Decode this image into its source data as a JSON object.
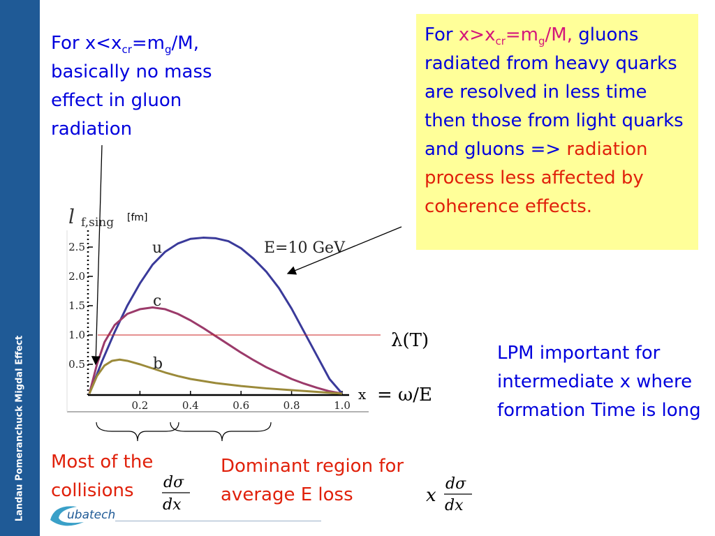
{
  "sidebar": {
    "title": "Landau Pomeranchuck Migdal Effect",
    "color": "#1f5a96"
  },
  "notes": {
    "left": {
      "prefix": "For x<x",
      "sub1": "cr",
      "mid": "=m",
      "sub2": "g",
      "suffix": "/M,",
      "body": "basically no mass effect in gluon radiation"
    },
    "box": {
      "prefix": "For ",
      "cond_a": "x>x",
      "cond_sub1": "cr",
      "cond_b": "=m",
      "cond_sub2": "g",
      "cond_c": "/M,",
      "body": " gluons radiated from  heavy quarks are resolved in less time then those from light quarks and gluons => ",
      "highlight": "radiation process less affected by coherence effects."
    },
    "lpm": "LPM important for intermediate x where formation Time is long",
    "collisions": "Most of the collisions",
    "dominant": "Dominant region for average E loss"
  },
  "logo": {
    "text": "ubatech"
  },
  "chart_data": {
    "type": "line",
    "xlabel": "x",
    "xlabel_suffix": "= ω/E",
    "ylabel": "l",
    "ylabel_sub": "f,sing",
    "yunit": "[fm]",
    "annotation": "E=10 GeV",
    "xlim": [
      0,
      1.0
    ],
    "ylim": [
      0,
      2.8
    ],
    "xticks": [
      "0.2",
      "0.4",
      "0.6",
      "0.8",
      "1.0"
    ],
    "yticks": [
      "0.5",
      "1.0",
      "1.5",
      "2.0",
      "2.5"
    ],
    "hline": {
      "y": 1.0,
      "label": "λ(T)",
      "color": "#cc2222"
    },
    "series": [
      {
        "name": "u",
        "color": "#3a3a9a",
        "points": [
          [
            0,
            0
          ],
          [
            0.05,
            0.55
          ],
          [
            0.1,
            1.05
          ],
          [
            0.15,
            1.5
          ],
          [
            0.2,
            1.88
          ],
          [
            0.25,
            2.2
          ],
          [
            0.3,
            2.42
          ],
          [
            0.35,
            2.56
          ],
          [
            0.4,
            2.64
          ],
          [
            0.45,
            2.66
          ],
          [
            0.5,
            2.65
          ],
          [
            0.55,
            2.6
          ],
          [
            0.6,
            2.48
          ],
          [
            0.65,
            2.3
          ],
          [
            0.7,
            2.08
          ],
          [
            0.75,
            1.8
          ],
          [
            0.8,
            1.45
          ],
          [
            0.85,
            1.05
          ],
          [
            0.9,
            0.65
          ],
          [
            0.95,
            0.25
          ],
          [
            1.0,
            0
          ]
        ]
      },
      {
        "name": "c",
        "color": "#9b3a6a",
        "points": [
          [
            0,
            0
          ],
          [
            0.03,
            0.5
          ],
          [
            0.06,
            0.88
          ],
          [
            0.1,
            1.17
          ],
          [
            0.15,
            1.36
          ],
          [
            0.2,
            1.44
          ],
          [
            0.25,
            1.47
          ],
          [
            0.3,
            1.44
          ],
          [
            0.35,
            1.36
          ],
          [
            0.4,
            1.25
          ],
          [
            0.45,
            1.12
          ],
          [
            0.5,
            0.98
          ],
          [
            0.55,
            0.84
          ],
          [
            0.6,
            0.7
          ],
          [
            0.65,
            0.57
          ],
          [
            0.7,
            0.45
          ],
          [
            0.75,
            0.35
          ],
          [
            0.8,
            0.25
          ],
          [
            0.85,
            0.17
          ],
          [
            0.9,
            0.1
          ],
          [
            0.95,
            0.04
          ],
          [
            1.0,
            0
          ]
        ]
      },
      {
        "name": "b",
        "color": "#9b8a3a",
        "points": [
          [
            0,
            0
          ],
          [
            0.03,
            0.3
          ],
          [
            0.06,
            0.48
          ],
          [
            0.09,
            0.56
          ],
          [
            0.12,
            0.58
          ],
          [
            0.15,
            0.56
          ],
          [
            0.2,
            0.5
          ],
          [
            0.25,
            0.43
          ],
          [
            0.3,
            0.36
          ],
          [
            0.35,
            0.3
          ],
          [
            0.4,
            0.25
          ],
          [
            0.5,
            0.18
          ],
          [
            0.6,
            0.13
          ],
          [
            0.7,
            0.09
          ],
          [
            0.8,
            0.06
          ],
          [
            0.9,
            0.03
          ],
          [
            1.0,
            0
          ]
        ]
      }
    ]
  }
}
